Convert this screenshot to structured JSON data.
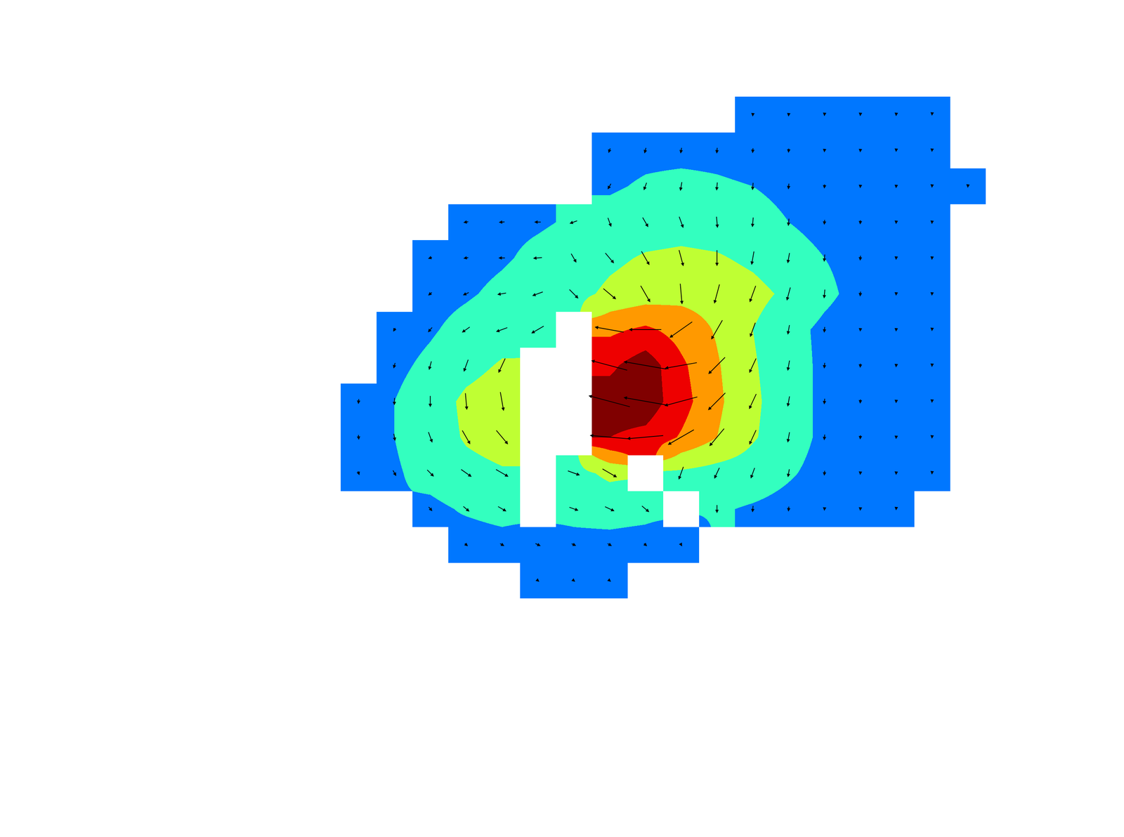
{
  "chart_data": {
    "type": "contour",
    "tick_labels": false,
    "grid": false,
    "xlim": [
      -0.5,
      17.5
    ],
    "ylim": [
      13.5,
      -0.5
    ],
    "zlim": [
      0,
      60
    ],
    "colors": [
      "#0077ff",
      "#33ffbf",
      "#bfff33",
      "#ff9900",
      "#ee0000",
      "#800000"
    ],
    "x": [
      0,
      1,
      2,
      3,
      4,
      5,
      6,
      7,
      8,
      9,
      10,
      11,
      12,
      13,
      14,
      15,
      16,
      17
    ],
    "y": [
      0,
      1,
      2,
      3,
      4,
      5,
      6,
      7,
      8,
      9,
      10,
      11,
      12,
      13
    ],
    "z": [
      [
        null,
        null,
        null,
        null,
        null,
        null,
        null,
        null,
        null,
        null,
        null,
        5,
        5,
        4,
        4,
        4,
        3,
        null
      ],
      [
        null,
        null,
        null,
        null,
        null,
        null,
        null,
        7,
        8,
        8,
        8,
        7,
        6,
        5,
        5,
        4,
        4,
        null
      ],
      [
        null,
        null,
        null,
        null,
        null,
        null,
        null,
        9,
        11,
        12,
        11,
        10,
        8,
        6,
        5,
        5,
        4,
        4
      ],
      [
        null,
        null,
        null,
        7,
        8,
        9,
        11,
        13,
        15,
        16,
        15,
        13,
        10,
        7,
        6,
        5,
        5,
        null
      ],
      [
        null,
        null,
        6,
        7,
        9,
        12,
        14,
        18,
        21,
        22,
        21,
        18,
        14,
        10,
        7,
        5,
        5,
        null
      ],
      [
        null,
        null,
        7,
        9,
        12,
        15,
        17,
        22,
        25,
        27,
        26,
        23,
        18,
        12,
        7,
        5,
        5,
        null
      ],
      [
        null,
        6,
        9,
        13,
        16,
        19,
        null,
        38,
        42,
        36,
        29,
        20,
        13,
        8,
        5,
        5,
        4,
        null
      ],
      [
        null,
        8,
        12,
        17,
        21,
        null,
        null,
        48,
        56,
        42,
        31,
        21,
        14,
        8,
        6,
        5,
        4,
        null
      ],
      [
        7,
        10,
        15,
        22,
        25,
        null,
        null,
        55,
        56,
        44,
        32,
        22,
        14,
        8,
        6,
        5,
        4,
        null
      ],
      [
        7,
        10,
        15,
        21,
        24,
        null,
        null,
        50,
        47,
        39,
        30,
        21,
        14,
        8,
        6,
        5,
        4,
        null
      ],
      [
        6,
        9,
        13,
        17,
        19,
        null,
        17,
        22,
        null,
        18,
        16,
        15,
        11,
        7,
        5,
        5,
        4,
        null
      ],
      [
        null,
        null,
        8,
        11,
        13,
        null,
        13,
        14,
        13,
        null,
        11,
        9,
        7,
        5,
        5,
        4,
        null,
        null
      ],
      [
        null,
        null,
        null,
        6,
        7,
        8,
        7,
        7,
        6,
        5,
        null,
        null,
        null,
        null,
        null,
        null,
        null,
        null
      ],
      [
        null,
        null,
        null,
        null,
        null,
        5,
        5,
        5,
        null,
        null,
        null,
        null,
        null,
        null,
        null,
        null,
        null,
        null
      ]
    ],
    "direction": [
      [
        null,
        null,
        null,
        null,
        null,
        null,
        null,
        null,
        null,
        null,
        null,
        265,
        265,
        265,
        265,
        265,
        265,
        null
      ],
      [
        null,
        null,
        null,
        null,
        null,
        null,
        null,
        250,
        255,
        260,
        265,
        265,
        265,
        265,
        265,
        265,
        265,
        null
      ],
      [
        null,
        null,
        null,
        null,
        null,
        null,
        null,
        240,
        250,
        260,
        265,
        265,
        265,
        265,
        265,
        265,
        265,
        265
      ],
      [
        null,
        null,
        null,
        190,
        185,
        180,
        200,
        290,
        300,
        290,
        275,
        265,
        265,
        265,
        265,
        265,
        265,
        null
      ],
      [
        null,
        null,
        200,
        190,
        180,
        185,
        300,
        310,
        300,
        285,
        270,
        260,
        260,
        265,
        265,
        265,
        265,
        null
      ],
      [
        null,
        null,
        220,
        205,
        190,
        200,
        315,
        320,
        300,
        275,
        255,
        250,
        255,
        265,
        265,
        265,
        265,
        null
      ],
      [
        null,
        240,
        230,
        215,
        200,
        210,
        null,
        170,
        180,
        215,
        240,
        250,
        260,
        265,
        265,
        265,
        265,
        null
      ],
      [
        null,
        255,
        255,
        250,
        245,
        null,
        null,
        165,
        170,
        190,
        225,
        245,
        260,
        265,
        265,
        265,
        265,
        null
      ],
      [
        265,
        268,
        270,
        275,
        280,
        null,
        null,
        165,
        170,
        195,
        225,
        245,
        260,
        265,
        265,
        265,
        265,
        null
      ],
      [
        275,
        280,
        290,
        300,
        310,
        null,
        null,
        175,
        185,
        210,
        230,
        245,
        260,
        265,
        265,
        265,
        265,
        null
      ],
      [
        290,
        300,
        315,
        325,
        330,
        null,
        340,
        330,
        null,
        250,
        245,
        250,
        260,
        265,
        265,
        265,
        265,
        null
      ],
      [
        null,
        null,
        310,
        320,
        330,
        null,
        340,
        335,
        320,
        null,
        270,
        265,
        265,
        265,
        265,
        265,
        null,
        null
      ],
      [
        null,
        null,
        null,
        320,
        330,
        335,
        335,
        330,
        320,
        300,
        null,
        null,
        null,
        null,
        null,
        null,
        null,
        null
      ],
      [
        null,
        null,
        null,
        null,
        null,
        320,
        320,
        320,
        null,
        null,
        null,
        null,
        null,
        null,
        null,
        null,
        null,
        null
      ]
    ]
  }
}
